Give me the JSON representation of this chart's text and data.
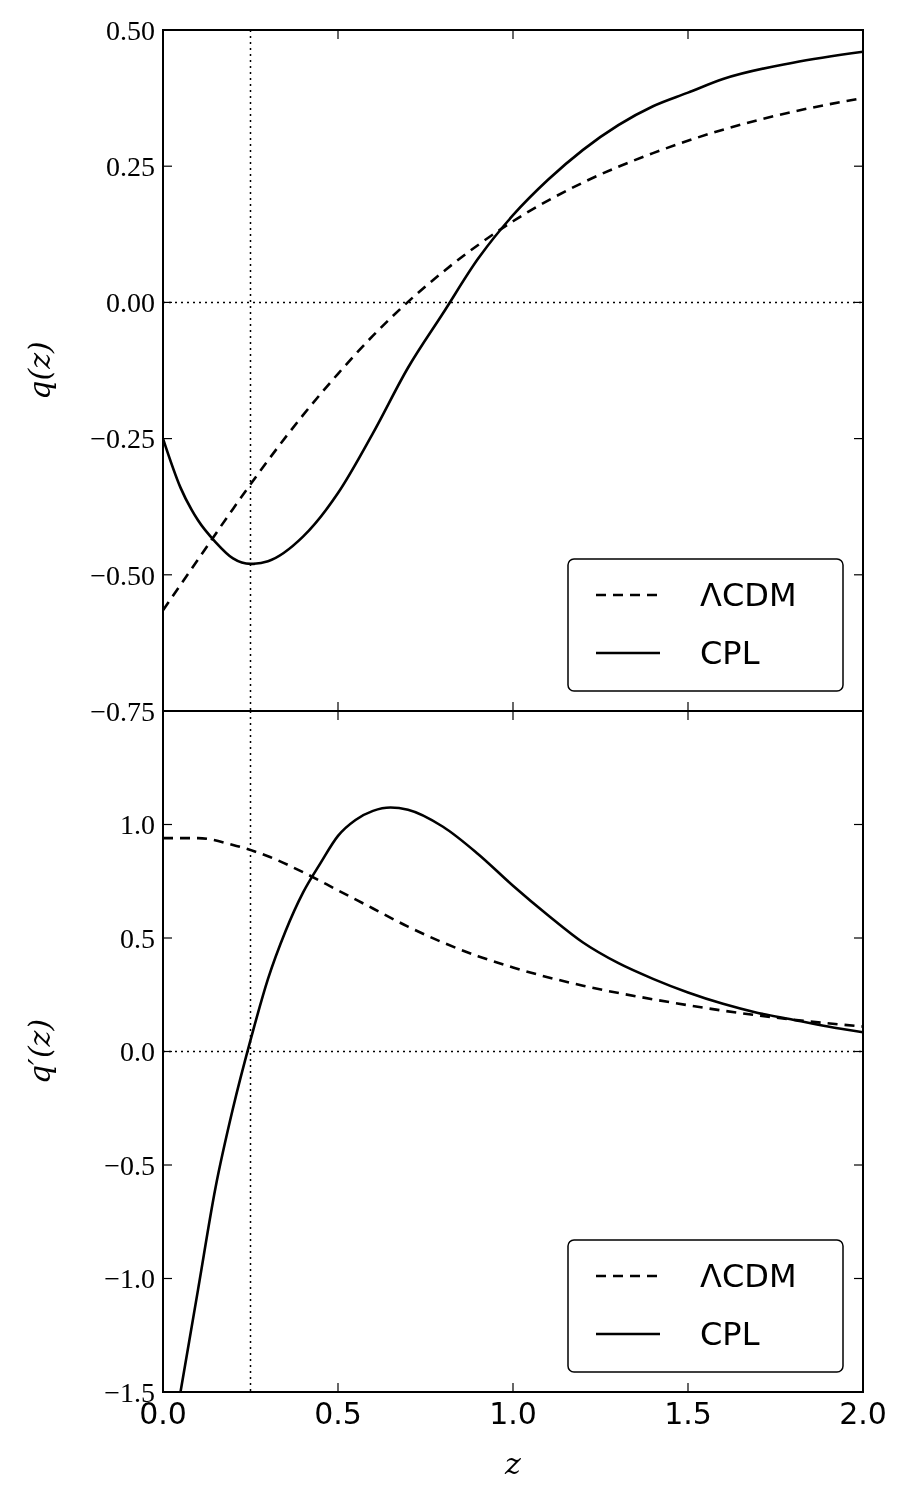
{
  "chart_data": [
    {
      "type": "line",
      "ylabel": "q(z)",
      "xlim": [
        0,
        2
      ],
      "xticks": [
        0,
        0.5,
        1,
        1.5,
        2
      ],
      "ylim": [
        -0.75,
        0.5
      ],
      "yticks": [
        {
          "value": -0.75,
          "label": "−0.75"
        },
        {
          "value": -0.5,
          "label": "−0.50"
        },
        {
          "value": -0.25,
          "label": "−0.25"
        },
        {
          "value": 0,
          "label": "0.00"
        },
        {
          "value": 0.25,
          "label": "0.25"
        },
        {
          "value": 0.5,
          "label": "0.50"
        }
      ],
      "tick_labels": "y",
      "legend": "bottom right",
      "series": [
        {
          "name": "ΛCDM",
          "color": "#000000",
          "line_style": "dashed",
          "x": [
            0,
            0.1,
            0.2,
            0.3,
            0.4,
            0.5,
            0.6,
            0.7,
            0.8,
            1.0,
            1.2,
            1.4,
            1.6,
            1.8,
            2.0
          ],
          "values": [
            -0.565,
            -0.472,
            -0.379,
            -0.29,
            -0.207,
            -0.131,
            -0.061,
            0.001,
            0.056,
            0.149,
            0.22,
            0.274,
            0.317,
            0.35,
            0.375
          ]
        },
        {
          "name": "CPL",
          "color": "#000000",
          "line_style": "solid",
          "x": [
            0,
            0.05,
            0.1,
            0.15,
            0.2,
            0.25,
            0.3,
            0.4,
            0.5,
            0.6,
            0.7,
            0.8,
            0.9,
            1.0,
            1.1,
            1.2,
            1.4,
            1.5,
            1.6,
            1.8,
            2.0
          ],
          "values": [
            -0.25,
            -0.34,
            -0.4,
            -0.44,
            -0.47,
            -0.48,
            -0.475,
            -0.43,
            -0.35,
            -0.24,
            -0.12,
            -0.02,
            0.08,
            0.16,
            0.225,
            0.28,
            0.36,
            0.385,
            0.41,
            0.44,
            0.46
          ]
        }
      ],
      "ref_lines": [
        {
          "axis": "x",
          "value": 0.25,
          "line_style": "dotted",
          "color": "#000000"
        },
        {
          "axis": "y",
          "value": 0,
          "line_style": "dotted",
          "color": "#000000"
        }
      ]
    },
    {
      "type": "line",
      "xlabel": "z",
      "ylabel": "q′(z)",
      "xlim": [
        0,
        2
      ],
      "xticks": [
        {
          "value": 0,
          "label": "0.0"
        },
        {
          "value": 0.5,
          "label": "0.5"
        },
        {
          "value": 1,
          "label": "1.0"
        },
        {
          "value": 1.5,
          "label": "1.5"
        },
        {
          "value": 2,
          "label": "2.0"
        }
      ],
      "ylim": [
        -1.5,
        1.5
      ],
      "yticks": [
        {
          "value": -1.5,
          "label": "−1.5"
        },
        {
          "value": -1,
          "label": "−1.0"
        },
        {
          "value": -0.5,
          "label": "−0.5"
        },
        {
          "value": 0,
          "label": "0.0"
        },
        {
          "value": 0.5,
          "label": "0.5"
        },
        {
          "value": 1,
          "label": "1.0"
        }
      ],
      "legend": "bottom right",
      "series": [
        {
          "name": "ΛCDM",
          "color": "#000000",
          "line_style": "dashed",
          "x": [
            0,
            0.1,
            0.2,
            0.3,
            0.4,
            0.5,
            0.6,
            0.7,
            0.8,
            0.9,
            1.0,
            1.2,
            1.4,
            1.6,
            1.8,
            2.0
          ],
          "values": [
            0.94,
            0.94,
            0.91,
            0.86,
            0.79,
            0.71,
            0.63,
            0.55,
            0.48,
            0.42,
            0.37,
            0.29,
            0.23,
            0.18,
            0.14,
            0.11
          ]
        },
        {
          "name": "CPL",
          "color": "#000000",
          "line_style": "solid",
          "x": [
            0.05,
            0.1,
            0.15,
            0.2,
            0.25,
            0.3,
            0.35,
            0.4,
            0.45,
            0.5,
            0.55,
            0.6,
            0.65,
            0.7,
            0.8,
            0.9,
            1.0,
            1.1,
            1.2,
            1.3,
            1.4,
            1.5,
            1.6,
            1.7,
            1.8,
            1.9,
            2.0
          ],
          "values": [
            -1.5,
            -1.05,
            -0.6,
            -0.25,
            0.05,
            0.32,
            0.53,
            0.7,
            0.83,
            0.95,
            1.02,
            1.06,
            1.075,
            1.065,
            0.99,
            0.87,
            0.73,
            0.6,
            0.48,
            0.39,
            0.32,
            0.26,
            0.21,
            0.17,
            0.14,
            0.11,
            0.085
          ]
        }
      ],
      "ref_lines": [
        {
          "axis": "x",
          "value": 0.25,
          "line_style": "dotted",
          "color": "#000000"
        },
        {
          "axis": "y",
          "value": 0,
          "line_style": "dotted",
          "color": "#000000"
        }
      ]
    }
  ]
}
